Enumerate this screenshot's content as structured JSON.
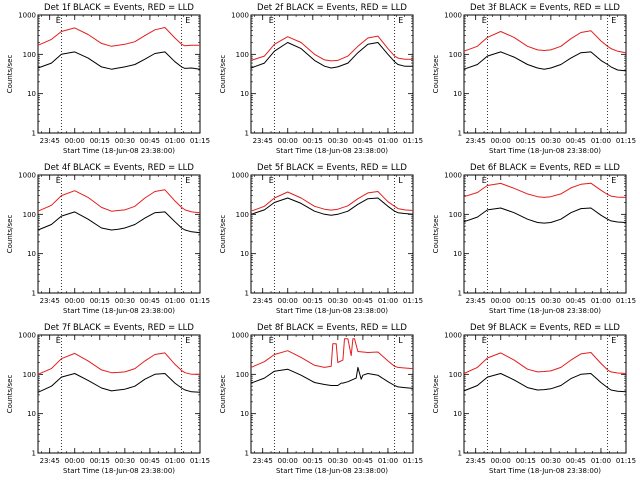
{
  "colors": {
    "background": "#ffffff",
    "events": "#000000",
    "lld": "#e41e1e",
    "axes": "#000000"
  },
  "x_tick_labels": [
    "23:45",
    "00:00",
    "00:15",
    "00:30",
    "00:45",
    "01:00",
    "01:15"
  ],
  "y_tick_labels": [
    "1",
    "10",
    "100",
    "1000"
  ],
  "chart_data": [
    {
      "type": "line",
      "title": "Det 1f  BLACK = Events, RED = LLD",
      "xlabel": "Start Time (18-Jun-08 23:38:00)",
      "ylabel": "Counts/sec",
      "xlim_min": [
        0,
        97
      ],
      "ylim": [
        1,
        1000
      ],
      "yscale": "log",
      "grid": false,
      "markers": [
        {
          "label": "E",
          "x_min": 13
        },
        {
          "label": "E",
          "x_min": 87
        }
      ],
      "dotted_lines_x_min": [
        14,
        86
      ],
      "series": [
        {
          "name": "Events",
          "x_min": [
            0,
            8,
            14,
            22,
            30,
            38,
            44,
            48,
            52,
            58,
            64,
            70,
            76,
            82,
            86,
            88,
            92,
            97
          ],
          "values": [
            45,
            60,
            100,
            115,
            80,
            48,
            42,
            45,
            48,
            55,
            75,
            105,
            115,
            65,
            48,
            44,
            45,
            42
          ]
        },
        {
          "name": "LLD",
          "x_min": [
            0,
            8,
            14,
            22,
            30,
            38,
            44,
            48,
            52,
            58,
            64,
            70,
            76,
            82,
            86,
            88,
            92,
            97
          ],
          "values": [
            170,
            240,
            380,
            470,
            320,
            190,
            160,
            170,
            180,
            210,
            300,
            420,
            480,
            260,
            180,
            165,
            170,
            170
          ]
        }
      ]
    },
    {
      "type": "line",
      "title": "Det 2f  BLACK = Events, RED = LLD",
      "xlabel": "Start Time (18-Jun-08 23:38:00)",
      "ylabel": "Counts/sec",
      "xlim_min": [
        0,
        97
      ],
      "ylim": [
        1,
        1000
      ],
      "yscale": "log",
      "grid": false,
      "markers": [
        {
          "label": "E",
          "x_min": 13
        },
        {
          "label": "E",
          "x_min": 87
        }
      ],
      "dotted_lines_x_min": [
        14,
        86
      ],
      "series": [
        {
          "name": "Events",
          "x_min": [
            0,
            8,
            14,
            22,
            30,
            38,
            44,
            48,
            52,
            58,
            64,
            70,
            76,
            82,
            86,
            88,
            92,
            97
          ],
          "values": [
            45,
            60,
            120,
            200,
            140,
            70,
            50,
            45,
            48,
            60,
            110,
            180,
            200,
            100,
            65,
            55,
            50,
            50
          ]
        },
        {
          "name": "LLD",
          "x_min": [
            0,
            8,
            14,
            22,
            30,
            38,
            44,
            48,
            52,
            58,
            64,
            70,
            76,
            82,
            86,
            88,
            92,
            97
          ],
          "values": [
            70,
            90,
            180,
            280,
            200,
            100,
            72,
            68,
            70,
            90,
            160,
            260,
            290,
            140,
            90,
            80,
            75,
            75
          ]
        }
      ]
    },
    {
      "type": "line",
      "title": "Det 3f  BLACK = Events, RED = LLD",
      "xlabel": "Start Time (18-Jun-08 23:38:00)",
      "ylabel": "Counts/sec",
      "xlim_min": [
        0,
        97
      ],
      "ylim": [
        1,
        1000
      ],
      "yscale": "log",
      "grid": false,
      "markers": [
        {
          "label": "E",
          "x_min": 13
        },
        {
          "label": "E",
          "x_min": 87
        }
      ],
      "dotted_lines_x_min": [
        14,
        86
      ],
      "series": [
        {
          "name": "Events",
          "x_min": [
            0,
            8,
            14,
            22,
            30,
            38,
            44,
            48,
            52,
            58,
            64,
            70,
            76,
            82,
            86,
            88,
            92,
            97
          ],
          "values": [
            42,
            55,
            90,
            115,
            85,
            55,
            45,
            42,
            45,
            55,
            80,
            110,
            115,
            70,
            55,
            48,
            40,
            38
          ]
        },
        {
          "name": "LLD",
          "x_min": [
            0,
            8,
            14,
            22,
            30,
            38,
            44,
            48,
            52,
            58,
            64,
            70,
            76,
            82,
            86,
            88,
            92,
            97
          ],
          "values": [
            120,
            160,
            270,
            380,
            270,
            160,
            130,
            125,
            130,
            160,
            250,
            360,
            400,
            220,
            160,
            140,
            120,
            110
          ]
        }
      ]
    },
    {
      "type": "line",
      "title": "Det 4f  BLACK = Events, RED = LLD",
      "xlabel": "Start Time (18-Jun-08 23:38:00)",
      "ylabel": "Counts/sec",
      "xlim_min": [
        0,
        97
      ],
      "ylim": [
        1,
        1000
      ],
      "yscale": "log",
      "grid": false,
      "markers": [
        {
          "label": "E",
          "x_min": 13
        },
        {
          "label": "E",
          "x_min": 87
        }
      ],
      "dotted_lines_x_min": [
        14,
        86
      ],
      "series": [
        {
          "name": "Events",
          "x_min": [
            0,
            8,
            14,
            22,
            30,
            38,
            44,
            48,
            52,
            58,
            64,
            70,
            76,
            82,
            86,
            88,
            92,
            97
          ],
          "values": [
            40,
            55,
            90,
            115,
            75,
            45,
            40,
            42,
            45,
            55,
            80,
            110,
            115,
            65,
            45,
            40,
            36,
            34
          ]
        },
        {
          "name": "LLD",
          "x_min": [
            0,
            8,
            14,
            22,
            30,
            38,
            44,
            48,
            52,
            58,
            64,
            70,
            76,
            82,
            86,
            88,
            92,
            97
          ],
          "values": [
            120,
            170,
            300,
            400,
            270,
            150,
            120,
            125,
            130,
            160,
            260,
            380,
            420,
            220,
            150,
            130,
            115,
            110
          ]
        }
      ]
    },
    {
      "type": "line",
      "title": "Det 5f  BLACK = Events, RED = LLD",
      "xlabel": "Start Time (18-Jun-08 23:38:00)",
      "ylabel": "Counts/sec",
      "xlim_min": [
        0,
        97
      ],
      "ylim": [
        1,
        1000
      ],
      "yscale": "log",
      "grid": false,
      "markers": [
        {
          "label": "E",
          "x_min": 13
        },
        {
          "label": "L",
          "x_min": 87
        }
      ],
      "dotted_lines_x_min": [
        14,
        86
      ],
      "series": [
        {
          "name": "Events",
          "x_min": [
            0,
            8,
            14,
            22,
            30,
            38,
            44,
            48,
            52,
            58,
            64,
            70,
            76,
            82,
            86,
            88,
            92,
            97
          ],
          "values": [
            100,
            130,
            200,
            260,
            190,
            120,
            100,
            95,
            100,
            120,
            180,
            250,
            260,
            160,
            120,
            110,
            105,
            100
          ]
        },
        {
          "name": "LLD",
          "x_min": [
            0,
            8,
            14,
            22,
            30,
            38,
            44,
            48,
            52,
            58,
            64,
            70,
            76,
            82,
            86,
            88,
            92,
            97
          ],
          "values": [
            120,
            160,
            260,
            370,
            260,
            160,
            135,
            128,
            135,
            165,
            250,
            350,
            380,
            210,
            160,
            140,
            130,
            125
          ]
        }
      ]
    },
    {
      "type": "line",
      "title": "Det 6f  BLACK = Events, RED = LLD",
      "xlabel": "Start Time (18-Jun-08 23:38:00)",
      "ylabel": "Counts/sec",
      "xlim_min": [
        0,
        97
      ],
      "ylim": [
        1,
        1000
      ],
      "yscale": "log",
      "grid": false,
      "markers": [
        {
          "label": "E",
          "x_min": 13
        },
        {
          "label": "E",
          "x_min": 87
        }
      ],
      "dotted_lines_x_min": [
        14,
        86
      ],
      "series": [
        {
          "name": "Events",
          "x_min": [
            0,
            8,
            14,
            22,
            30,
            38,
            44,
            48,
            52,
            58,
            64,
            70,
            76,
            82,
            86,
            88,
            92,
            97
          ],
          "values": [
            65,
            85,
            130,
            145,
            110,
            75,
            62,
            60,
            62,
            75,
            110,
            140,
            145,
            95,
            75,
            68,
            64,
            62
          ]
        },
        {
          "name": "LLD",
          "x_min": [
            0,
            8,
            14,
            22,
            30,
            38,
            44,
            48,
            52,
            58,
            64,
            70,
            76,
            82,
            86,
            88,
            92,
            97
          ],
          "values": [
            280,
            360,
            540,
            610,
            460,
            330,
            280,
            270,
            280,
            330,
            470,
            580,
            620,
            410,
            320,
            290,
            275,
            270
          ]
        }
      ]
    },
    {
      "type": "line",
      "title": "Det 7f  BLACK = Events, RED = LLD",
      "xlabel": "Start Time (18-Jun-08 23:38:00)",
      "ylabel": "Counts/sec",
      "xlim_min": [
        0,
        97
      ],
      "ylim": [
        1,
        1000
      ],
      "yscale": "log",
      "grid": false,
      "markers": [
        {
          "label": "E",
          "x_min": 13
        },
        {
          "label": "E",
          "x_min": 87
        }
      ],
      "dotted_lines_x_min": [
        14,
        86
      ],
      "series": [
        {
          "name": "Events",
          "x_min": [
            0,
            8,
            14,
            22,
            30,
            38,
            44,
            48,
            52,
            58,
            64,
            70,
            76,
            82,
            86,
            88,
            92,
            97
          ],
          "values": [
            35,
            50,
            85,
            105,
            70,
            45,
            38,
            40,
            42,
            50,
            75,
            100,
            105,
            60,
            45,
            40,
            36,
            35
          ]
        },
        {
          "name": "LLD",
          "x_min": [
            0,
            8,
            14,
            22,
            30,
            38,
            44,
            48,
            52,
            58,
            64,
            70,
            76,
            82,
            86,
            88,
            92,
            97
          ],
          "values": [
            100,
            140,
            250,
            340,
            220,
            130,
            110,
            112,
            115,
            140,
            220,
            320,
            350,
            180,
            125,
            110,
            100,
            100
          ]
        }
      ]
    },
    {
      "type": "line",
      "title": "Det 8f  BLACK = Events, RED = LLD",
      "xlabel": "Start Time (18-Jun-08 23:38:00)",
      "ylabel": "Counts/sec",
      "xlim_min": [
        0,
        97
      ],
      "ylim": [
        1,
        1000
      ],
      "yscale": "log",
      "grid": false,
      "markers": [
        {
          "label": "E",
          "x_min": 13
        },
        {
          "label": "L",
          "x_min": 87
        }
      ],
      "dotted_lines_x_min": [
        14,
        86
      ],
      "series": [
        {
          "name": "Events",
          "x_min": [
            0,
            8,
            14,
            22,
            30,
            38,
            44,
            48,
            52,
            54,
            55,
            58,
            63,
            64,
            66,
            67,
            70,
            76,
            82,
            86,
            88,
            92,
            97
          ],
          "values": [
            60,
            80,
            120,
            135,
            95,
            62,
            55,
            52,
            52,
            60,
            60,
            65,
            80,
            150,
            75,
            95,
            105,
            95,
            65,
            52,
            48,
            46,
            44
          ]
        },
        {
          "name": "LLD",
          "x_min": [
            0,
            8,
            14,
            22,
            30,
            38,
            44,
            48,
            49,
            51,
            52,
            55,
            56,
            58,
            60,
            61,
            62,
            64,
            70,
            76,
            82,
            86,
            88,
            92,
            97
          ],
          "values": [
            150,
            210,
            320,
            400,
            270,
            170,
            150,
            160,
            600,
            600,
            200,
            230,
            800,
            800,
            300,
            800,
            800,
            380,
            360,
            370,
            220,
            160,
            150,
            145,
            140
          ]
        }
      ]
    },
    {
      "type": "line",
      "title": "Det 9f  BLACK = Events, RED = LLD",
      "xlabel": "Start Time (18-Jun-08 23:38:00)",
      "ylabel": "Counts/sec",
      "xlim_min": [
        0,
        97
      ],
      "ylim": [
        1,
        1000
      ],
      "yscale": "log",
      "grid": false,
      "markers": [
        {
          "label": "E",
          "x_min": 13
        },
        {
          "label": "E",
          "x_min": 87
        }
      ],
      "dotted_lines_x_min": [
        14,
        86
      ],
      "series": [
        {
          "name": "Events",
          "x_min": [
            0,
            8,
            14,
            22,
            30,
            38,
            44,
            48,
            52,
            58,
            64,
            70,
            76,
            82,
            86,
            88,
            92,
            97
          ],
          "values": [
            38,
            52,
            85,
            105,
            72,
            46,
            40,
            41,
            43,
            52,
            78,
            100,
            105,
            62,
            46,
            40,
            37,
            36
          ]
        },
        {
          "name": "LLD",
          "x_min": [
            0,
            8,
            14,
            22,
            30,
            38,
            44,
            48,
            52,
            58,
            64,
            70,
            76,
            82,
            86,
            88,
            92,
            97
          ],
          "values": [
            105,
            150,
            260,
            350,
            230,
            135,
            115,
            118,
            122,
            150,
            230,
            330,
            360,
            190,
            130,
            115,
            108,
            105
          ]
        }
      ]
    }
  ]
}
